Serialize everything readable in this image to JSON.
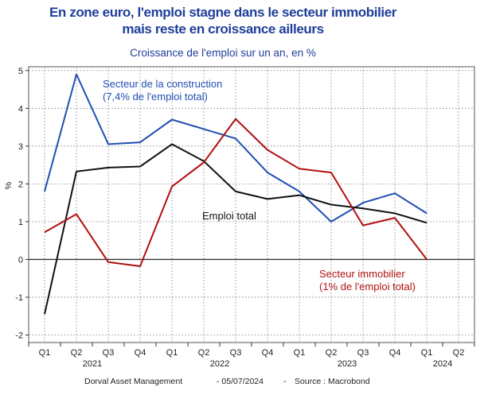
{
  "title_line1": "En zone euro, l'emploi stagne dans le secteur immobilier",
  "title_line2": "mais reste en croissance ailleurs",
  "subtitle": "Croissance de l'emploi sur un an, en %",
  "footer": {
    "source": "Dorval Asset Management",
    "date": "- 05/07/2024",
    "dash": "-",
    "source_label": "Source : Macrobond"
  },
  "colors": {
    "construction": "#1f4fb4",
    "total": "#111111",
    "immobilier": "#b01010"
  },
  "chart_data": {
    "type": "line",
    "ylabel": "%",
    "ylim": [
      -2.2,
      5.1
    ],
    "yticks": [
      -2,
      -1,
      0,
      1,
      2,
      3,
      4,
      5
    ],
    "categories": [
      "Q1 2021",
      "Q2 2021",
      "Q3 2021",
      "Q4 2021",
      "Q1 2022",
      "Q2 2022",
      "Q3 2022",
      "Q4 2022",
      "Q1 2023",
      "Q2 2023",
      "Q3 2023",
      "Q4 2023",
      "Q1 2024",
      "Q2 2024"
    ],
    "tick_labels": [
      "Q1",
      "Q2",
      "Q3",
      "Q4",
      "Q1",
      "Q2",
      "Q3",
      "Q4",
      "Q1",
      "Q2",
      "Q3",
      "Q4",
      "Q1",
      "Q2"
    ],
    "year_labels": [
      {
        "label": "2021",
        "position": 1.5
      },
      {
        "label": "2022",
        "position": 5.5
      },
      {
        "label": "2023",
        "position": 9.5
      },
      {
        "label": "2024",
        "position": 12.5
      }
    ],
    "series": [
      {
        "key": "construction",
        "values": [
          1.8,
          4.9,
          3.05,
          3.1,
          3.7,
          3.45,
          3.2,
          2.3,
          1.8,
          1.0,
          1.5,
          1.75,
          1.22,
          null
        ],
        "annotation": [
          "Secteur de la construction",
          "(7,4% de l'emploi total)"
        ]
      },
      {
        "key": "total",
        "values": [
          -1.45,
          2.33,
          2.43,
          2.46,
          3.05,
          2.6,
          1.8,
          1.6,
          1.7,
          1.45,
          1.35,
          1.22,
          0.97,
          null
        ],
        "annotation": [
          "Emploi total"
        ]
      },
      {
        "key": "immobilier",
        "values": [
          0.72,
          1.2,
          -0.07,
          -0.18,
          1.93,
          2.57,
          3.72,
          2.9,
          2.4,
          2.3,
          0.9,
          1.1,
          0.0,
          null
        ],
        "annotation": [
          "Secteur immobilier",
          "(1% de l'emploi total)"
        ]
      }
    ],
    "grid": true
  }
}
